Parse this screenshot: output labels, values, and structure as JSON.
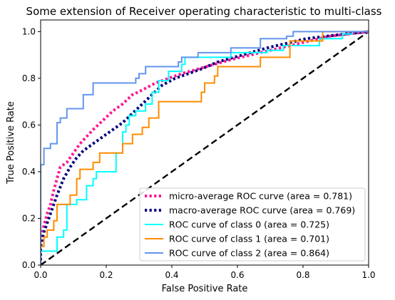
{
  "chart_data": {
    "type": "line",
    "title": "Some extension of Receiver operating characteristic to multi-class",
    "xlabel": "False Positive Rate",
    "ylabel": "True Positive Rate",
    "xlim": [
      0.0,
      1.0
    ],
    "ylim": [
      0.0,
      1.05
    ],
    "x_ticks": [
      "0.0",
      "0.2",
      "0.4",
      "0.6",
      "0.8",
      "1.0"
    ],
    "y_ticks": [
      "0.0",
      "0.2",
      "0.4",
      "0.6",
      "0.8",
      "1.0"
    ],
    "grid": false,
    "legend_position": "lower-right",
    "series": [
      {
        "name": "micro-average ROC curve (area = 0.781)",
        "color": "#ff1493",
        "style": "dotted",
        "points": [
          [
            0,
            0
          ],
          [
            0,
            0.1
          ],
          [
            0.01,
            0.17
          ],
          [
            0.02,
            0.22
          ],
          [
            0.03,
            0.26
          ],
          [
            0.04,
            0.32
          ],
          [
            0.05,
            0.37
          ],
          [
            0.06,
            0.42
          ],
          [
            0.08,
            0.44
          ],
          [
            0.1,
            0.48
          ],
          [
            0.12,
            0.52
          ],
          [
            0.14,
            0.55
          ],
          [
            0.16,
            0.58
          ],
          [
            0.19,
            0.62
          ],
          [
            0.22,
            0.66
          ],
          [
            0.25,
            0.69
          ],
          [
            0.28,
            0.73
          ],
          [
            0.31,
            0.75
          ],
          [
            0.35,
            0.78
          ],
          [
            0.39,
            0.8
          ],
          [
            0.43,
            0.82
          ],
          [
            0.48,
            0.84
          ],
          [
            0.53,
            0.86
          ],
          [
            0.58,
            0.88
          ],
          [
            0.64,
            0.9
          ],
          [
            0.7,
            0.92
          ],
          [
            0.76,
            0.94
          ],
          [
            0.82,
            0.96
          ],
          [
            0.88,
            0.98
          ],
          [
            0.94,
            0.99
          ],
          [
            1.0,
            1.0
          ]
        ]
      },
      {
        "name": "macro-average ROC curve (area = 0.769)",
        "color": "#000080",
        "style": "dotted",
        "points": [
          [
            0,
            0
          ],
          [
            0,
            0.08
          ],
          [
            0.01,
            0.14
          ],
          [
            0.03,
            0.22
          ],
          [
            0.05,
            0.3
          ],
          [
            0.07,
            0.37
          ],
          [
            0.09,
            0.42
          ],
          [
            0.11,
            0.46
          ],
          [
            0.13,
            0.49
          ],
          [
            0.16,
            0.52
          ],
          [
            0.19,
            0.55
          ],
          [
            0.22,
            0.58
          ],
          [
            0.25,
            0.61
          ],
          [
            0.28,
            0.65
          ],
          [
            0.31,
            0.69
          ],
          [
            0.34,
            0.73
          ],
          [
            0.37,
            0.77
          ],
          [
            0.41,
            0.8
          ],
          [
            0.45,
            0.82
          ],
          [
            0.49,
            0.84
          ],
          [
            0.54,
            0.87
          ],
          [
            0.59,
            0.89
          ],
          [
            0.64,
            0.91
          ],
          [
            0.69,
            0.93
          ],
          [
            0.75,
            0.95
          ],
          [
            0.81,
            0.97
          ],
          [
            0.87,
            0.98
          ],
          [
            0.93,
            0.99
          ],
          [
            1.0,
            1.0
          ]
        ]
      },
      {
        "name": "ROC curve of class 0 (area = 0.725)",
        "color": "#00ffff",
        "style": "solid",
        "points": [
          [
            0,
            0
          ],
          [
            0,
            0.06
          ],
          [
            0.05,
            0.06
          ],
          [
            0.05,
            0.12
          ],
          [
            0.07,
            0.12
          ],
          [
            0.07,
            0.15
          ],
          [
            0.08,
            0.15
          ],
          [
            0.08,
            0.26
          ],
          [
            0.11,
            0.26
          ],
          [
            0.11,
            0.28
          ],
          [
            0.14,
            0.28
          ],
          [
            0.14,
            0.34
          ],
          [
            0.16,
            0.34
          ],
          [
            0.16,
            0.37
          ],
          [
            0.17,
            0.37
          ],
          [
            0.17,
            0.4
          ],
          [
            0.23,
            0.4
          ],
          [
            0.23,
            0.48
          ],
          [
            0.25,
            0.48
          ],
          [
            0.25,
            0.57
          ],
          [
            0.26,
            0.57
          ],
          [
            0.26,
            0.6
          ],
          [
            0.27,
            0.6
          ],
          [
            0.27,
            0.64
          ],
          [
            0.29,
            0.64
          ],
          [
            0.29,
            0.66
          ],
          [
            0.32,
            0.66
          ],
          [
            0.32,
            0.69
          ],
          [
            0.34,
            0.69
          ],
          [
            0.34,
            0.74
          ],
          [
            0.36,
            0.74
          ],
          [
            0.36,
            0.79
          ],
          [
            0.39,
            0.79
          ],
          [
            0.39,
            0.83
          ],
          [
            0.43,
            0.83
          ],
          [
            0.43,
            0.86
          ],
          [
            0.44,
            0.86
          ],
          [
            0.44,
            0.89
          ],
          [
            0.58,
            0.89
          ],
          [
            0.58,
            0.91
          ],
          [
            0.69,
            0.91
          ],
          [
            0.69,
            0.92
          ],
          [
            0.74,
            0.92
          ],
          [
            0.74,
            0.94
          ],
          [
            0.85,
            0.94
          ],
          [
            0.85,
            0.97
          ],
          [
            0.92,
            0.97
          ],
          [
            0.92,
            0.99
          ],
          [
            0.95,
            0.99
          ],
          [
            0.95,
            1.0
          ],
          [
            1.0,
            1.0
          ]
        ]
      },
      {
        "name": "ROC curve of class 1 (area = 0.701)",
        "color": "#ff8c00",
        "style": "solid",
        "points": [
          [
            0,
            0
          ],
          [
            0,
            0.08
          ],
          [
            0.01,
            0.08
          ],
          [
            0.01,
            0.12
          ],
          [
            0.02,
            0.12
          ],
          [
            0.02,
            0.15
          ],
          [
            0.04,
            0.15
          ],
          [
            0.04,
            0.19
          ],
          [
            0.05,
            0.19
          ],
          [
            0.05,
            0.26
          ],
          [
            0.09,
            0.26
          ],
          [
            0.09,
            0.3
          ],
          [
            0.11,
            0.3
          ],
          [
            0.11,
            0.37
          ],
          [
            0.12,
            0.37
          ],
          [
            0.12,
            0.41
          ],
          [
            0.16,
            0.41
          ],
          [
            0.16,
            0.44
          ],
          [
            0.18,
            0.44
          ],
          [
            0.18,
            0.48
          ],
          [
            0.25,
            0.48
          ],
          [
            0.25,
            0.52
          ],
          [
            0.28,
            0.52
          ],
          [
            0.28,
            0.56
          ],
          [
            0.31,
            0.56
          ],
          [
            0.31,
            0.59
          ],
          [
            0.33,
            0.59
          ],
          [
            0.33,
            0.63
          ],
          [
            0.36,
            0.63
          ],
          [
            0.36,
            0.7
          ],
          [
            0.49,
            0.7
          ],
          [
            0.49,
            0.74
          ],
          [
            0.5,
            0.74
          ],
          [
            0.5,
            0.78
          ],
          [
            0.53,
            0.78
          ],
          [
            0.53,
            0.81
          ],
          [
            0.54,
            0.81
          ],
          [
            0.54,
            0.85
          ],
          [
            0.67,
            0.85
          ],
          [
            0.67,
            0.89
          ],
          [
            0.76,
            0.89
          ],
          [
            0.76,
            0.96
          ],
          [
            0.86,
            0.96
          ],
          [
            0.86,
            1.0
          ],
          [
            1.0,
            1.0
          ]
        ]
      },
      {
        "name": "ROC curve of class 2 (area = 0.864)",
        "color": "#6495ed",
        "style": "solid",
        "points": [
          [
            0,
            0
          ],
          [
            0,
            0.43
          ],
          [
            0.01,
            0.43
          ],
          [
            0.01,
            0.5
          ],
          [
            0.03,
            0.5
          ],
          [
            0.03,
            0.52
          ],
          [
            0.05,
            0.52
          ],
          [
            0.05,
            0.61
          ],
          [
            0.06,
            0.61
          ],
          [
            0.06,
            0.63
          ],
          [
            0.08,
            0.63
          ],
          [
            0.08,
            0.67
          ],
          [
            0.13,
            0.67
          ],
          [
            0.13,
            0.73
          ],
          [
            0.16,
            0.73
          ],
          [
            0.16,
            0.78
          ],
          [
            0.29,
            0.78
          ],
          [
            0.29,
            0.8
          ],
          [
            0.3,
            0.8
          ],
          [
            0.3,
            0.82
          ],
          [
            0.32,
            0.82
          ],
          [
            0.32,
            0.85
          ],
          [
            0.42,
            0.85
          ],
          [
            0.42,
            0.87
          ],
          [
            0.43,
            0.87
          ],
          [
            0.43,
            0.89
          ],
          [
            0.48,
            0.89
          ],
          [
            0.48,
            0.91
          ],
          [
            0.58,
            0.91
          ],
          [
            0.58,
            0.93
          ],
          [
            0.67,
            0.93
          ],
          [
            0.67,
            0.97
          ],
          [
            0.75,
            0.97
          ],
          [
            0.75,
            0.98
          ],
          [
            0.77,
            0.98
          ],
          [
            0.77,
            1.0
          ],
          [
            1.0,
            1.0
          ]
        ]
      }
    ],
    "reference_line": {
      "color": "#000000",
      "style": "dashed",
      "points": [
        [
          0,
          0
        ],
        [
          1,
          1
        ]
      ]
    }
  }
}
